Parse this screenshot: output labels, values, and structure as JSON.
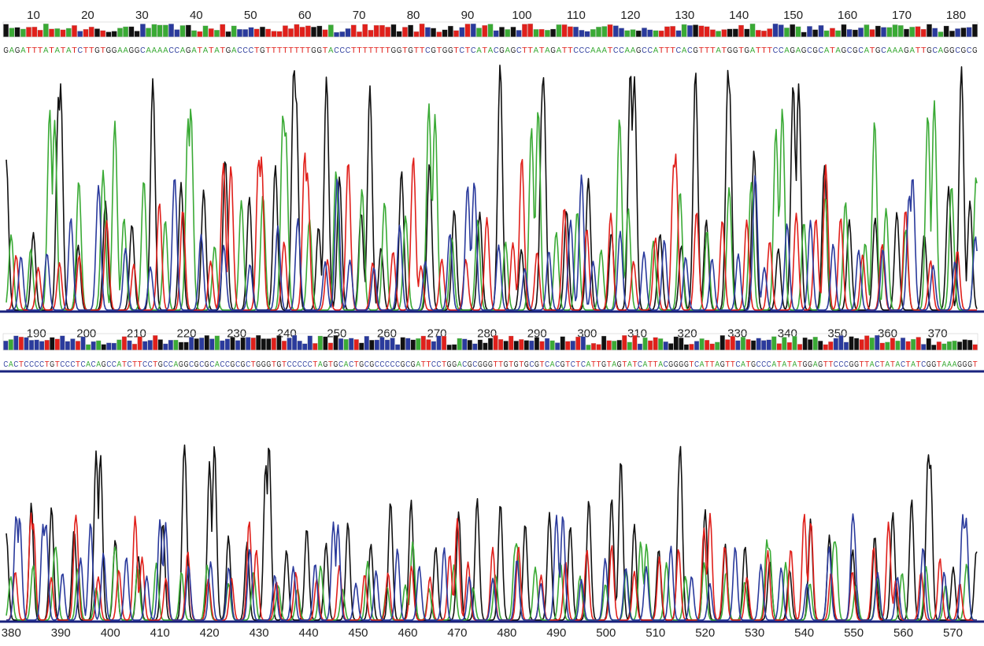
{
  "chart_data": {
    "type": "line",
    "title": "",
    "xlabel": "",
    "ylabel": "",
    "legend": "none",
    "colors": {
      "A": "#3aaa35",
      "C": "#2a3a9c",
      "G": "#111111",
      "T": "#e0201b",
      "baseline": "#1a237e"
    },
    "panels": [
      {
        "name": "panel-1",
        "x_range": [
          5,
          184
        ],
        "ticks": [
          "10",
          "20",
          "30",
          "40",
          "50",
          "60",
          "70",
          "80",
          "90",
          "100",
          "110",
          "120",
          "130",
          "140",
          "150",
          "160",
          "170",
          "180"
        ],
        "sequence": "GAGATTTATATATCTTGTGGAAGGCAAAACCAGATATATGACCCTGTTTTTTTTGGTACCCTTTTTTTGGTGTTCGTGGTCTCATACGAGCTTATAGATTCCCAAATCCAAGCCATTTCACGTTTATGGTGATTTCCAGAGCGCATAGCGCATGCAAAGATTGCAGGCGCG",
        "signals": {
          "G": {
            "amplitude_range": [
              0.05,
              1.0
            ],
            "tallest_near": [
              1,
              15,
              32,
              58,
              64,
              72,
              96,
              104,
              120,
              132,
              138,
              150,
              181
            ]
          },
          "A": {
            "amplitude_range": [
              0.05,
              0.85
            ],
            "tallest_near": [
              13,
              25,
              39,
              56,
              84,
              103,
              118,
              148,
              165,
              176
            ]
          },
          "T": {
            "amplitude_range": [
              0.05,
              0.65
            ],
            "tallest_near": [
              45,
              52,
              60,
              68,
              80,
              100,
              128,
              156
            ]
          },
          "C": {
            "amplitude_range": [
              0.05,
              0.55
            ],
            "tallest_near": [
              22,
              36,
              66,
              90,
              111,
              143,
              172
            ]
          }
        }
      },
      {
        "name": "panel-2",
        "x_range": [
          184,
          378
        ],
        "ticks": [
          "190",
          "200",
          "210",
          "220",
          "230",
          "240",
          "250",
          "260",
          "270",
          "280",
          "290",
          "300",
          "310",
          "320",
          "330",
          "340",
          "350",
          "360",
          "370"
        ],
        "sequence": "CACTCCCCTGTCCCTCACAGCCATCTTCCTGCCAGGCGCGCACCGCGCTGGGTGTCCCCCTAGTGCACTGCGCCCCCGCGATTCCTGGACGCGGGTTGTGTGCGTCACGTCTCATTGTAGTATCATTACGGGGTCATTAGTTCATGCCCATATATGGAGTTCCCGGTTACTATACTATCGGTAAAGGGT",
        "signals": {
          "G": {
            "amplitude_range": [
              0.05,
              0.35
            ],
            "tallest_near": [
              192,
              208,
              231,
              264,
              290,
              335,
              356,
              371
            ]
          },
          "A": {
            "amplitude_range": [
              0.05,
              0.3
            ],
            "tallest_near": [
              200,
              222,
              246,
              282,
              303,
              327,
              349,
              364
            ]
          },
          "T": {
            "amplitude_range": [
              0.05,
              0.3
            ],
            "tallest_near": [
              195,
              216,
              240,
              270,
              297,
              318,
              342,
              360
            ]
          },
          "C": {
            "amplitude_range": [
              0.05,
              0.3
            ],
            "tallest_near": [
              188,
              212,
              236,
              258,
              286,
              310,
              331,
              353,
              375
            ]
          }
        }
      },
      {
        "name": "panel-3",
        "x_range": [
          379,
          575
        ],
        "ticks": [
          "380",
          "390",
          "400",
          "410",
          "420",
          "430",
          "440",
          "450",
          "460",
          "470",
          "480",
          "490",
          "500",
          "510",
          "520",
          "530",
          "540",
          "550",
          "560",
          "570"
        ],
        "sequence": "",
        "signals": {
          "G": {
            "amplitude_range": [
              0.1,
              1.0
            ],
            "tallest_near": [
              398,
              415,
              421,
              432,
              503,
              515,
              565
            ]
          },
          "A": {
            "amplitude_range": [
              0.1,
              0.45
            ],
            "tallest_near": [
              389,
              401,
              461,
              482,
              507,
              533,
              546
            ]
          },
          "T": {
            "amplitude_range": [
              0.1,
              0.6
            ],
            "tallest_near": [
              384,
              393,
              405,
              428,
              470,
              521,
              540,
              557
            ]
          },
          "C": {
            "amplitude_range": [
              0.1,
              0.6
            ],
            "tallest_near": [
              381,
              387,
              396,
              410,
              445,
              490,
              550,
              572
            ]
          }
        }
      }
    ]
  }
}
